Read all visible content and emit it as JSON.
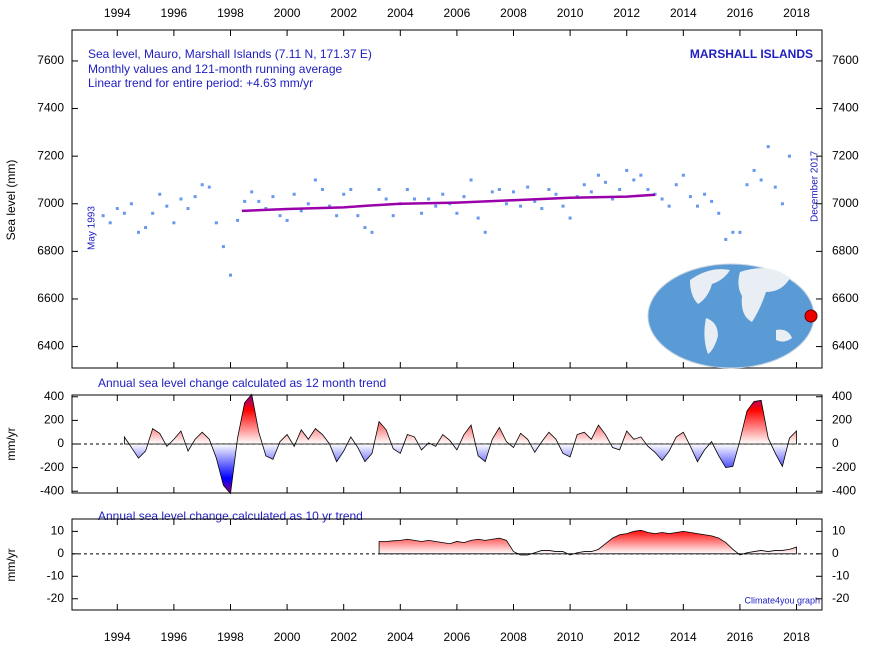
{
  "chart_data": [
    {
      "type": "scatter",
      "title_lines": [
        "Sea level, Mauro, Marshall Islands (7.11 N, 171.37 E)",
        "Monthly values and 121-month running average",
        "Linear trend for entire period: +4.63 mm/yr"
      ],
      "region_label": "MARSHALL ISLANDS",
      "start_label": "May 1993",
      "end_label": "December 2017",
      "y_label": "Sea level (mm)",
      "xlim": [
        1992.4,
        2018.9
      ],
      "xticks": [
        1994,
        1996,
        1998,
        2000,
        2002,
        2004,
        2006,
        2008,
        2010,
        2012,
        2014,
        2016,
        2018
      ],
      "ylim": [
        6310,
        7730
      ],
      "yticks": [
        6400,
        6600,
        6800,
        7000,
        7200,
        7400,
        7600
      ],
      "series": [
        {
          "type": "scatter",
          "color": "#6699ee",
          "x": [
            1993.5,
            1993.75,
            1994,
            1994.25,
            1994.5,
            1994.75,
            1995,
            1995.25,
            1995.5,
            1995.75,
            1996,
            1996.25,
            1996.5,
            1996.75,
            1997,
            1997.25,
            1997.5,
            1997.75,
            1998,
            1998.25,
            1998.5,
            1998.75,
            1999,
            1999.25,
            1999.5,
            1999.75,
            2000,
            2000.25,
            2000.5,
            2000.75,
            2001,
            2001.25,
            2001.5,
            2001.75,
            2002,
            2002.25,
            2002.5,
            2002.75,
            2003,
            2003.25,
            2003.5,
            2003.75,
            2004,
            2004.25,
            2004.5,
            2004.75,
            2005,
            2005.25,
            2005.5,
            2005.75,
            2006,
            2006.25,
            2006.5,
            2006.75,
            2007,
            2007.25,
            2007.5,
            2007.75,
            2008,
            2008.25,
            2008.5,
            2008.75,
            2009,
            2009.25,
            2009.5,
            2009.75,
            2010,
            2010.25,
            2010.5,
            2010.75,
            2011,
            2011.25,
            2011.5,
            2011.75,
            2012,
            2012.25,
            2012.5,
            2012.75,
            2013,
            2013.25,
            2013.5,
            2013.75,
            2014,
            2014.25,
            2014.5,
            2014.75,
            2015,
            2015.25,
            2015.5,
            2015.75,
            2016,
            2016.25,
            2016.5,
            2016.75,
            2017,
            2017.25,
            2017.5,
            2017.75
          ],
          "values": [
            6950,
            6920,
            6980,
            6960,
            7000,
            6880,
            6900,
            6960,
            7040,
            6990,
            6920,
            7020,
            6980,
            7030,
            7080,
            7070,
            6920,
            6820,
            6700,
            6930,
            7010,
            7050,
            7010,
            6980,
            7030,
            6950,
            6930,
            7040,
            6970,
            7000,
            7100,
            7060,
            6990,
            6950,
            7040,
            7060,
            6950,
            6900,
            6880,
            7060,
            7020,
            6950,
            7000,
            7060,
            7020,
            6960,
            7020,
            6990,
            7040,
            7000,
            6960,
            7030,
            7100,
            6940,
            6880,
            7050,
            7060,
            7000,
            7050,
            6990,
            7070,
            7010,
            6980,
            7060,
            7040,
            6990,
            6940,
            7030,
            7080,
            7050,
            7120,
            7090,
            7020,
            7060,
            7140,
            7100,
            7120,
            7060,
            7040,
            7020,
            6990,
            7080,
            7120,
            7030,
            6990,
            7040,
            7010,
            6960,
            6850,
            6880,
            6880,
            7080,
            7140,
            7100,
            7240,
            7070,
            7000,
            7200
          ]
        },
        {
          "type": "line",
          "color": "#9900aa",
          "x": [
            1998.4,
            2000,
            2002,
            2003,
            2004,
            2006,
            2008,
            2010,
            2012,
            2013
          ],
          "values": [
            6970,
            6978,
            6985,
            6993,
            7000,
            7005,
            7015,
            7025,
            7030,
            7038
          ]
        }
      ]
    },
    {
      "type": "area",
      "title": "Annual sea level change calculated as 12 month trend",
      "y_label": "mm/yr",
      "xlim": [
        1992.4,
        2018.9
      ],
      "xticks": [
        1994,
        1996,
        1998,
        2000,
        2002,
        2004,
        2006,
        2008,
        2010,
        2012,
        2014,
        2016,
        2018
      ],
      "ylim": [
        -415,
        415
      ],
      "yticks": [
        -400,
        -200,
        0,
        200,
        400
      ],
      "positive_color": "#ff0000",
      "negative_color": "#0000ff",
      "peak_color": "#880088",
      "x": [
        1994.25,
        1994.5,
        1994.75,
        1995,
        1995.25,
        1995.5,
        1995.75,
        1996,
        1996.25,
        1996.5,
        1996.75,
        1997,
        1997.25,
        1997.5,
        1997.75,
        1998,
        1998.25,
        1998.5,
        1998.75,
        1999,
        1999.25,
        1999.5,
        1999.75,
        2000,
        2000.25,
        2000.5,
        2000.75,
        2001,
        2001.25,
        2001.5,
        2001.75,
        2002,
        2002.25,
        2002.5,
        2002.75,
        2003,
        2003.25,
        2003.5,
        2003.75,
        2004,
        2004.25,
        2004.5,
        2004.75,
        2005,
        2005.25,
        2005.5,
        2005.75,
        2006,
        2006.25,
        2006.5,
        2006.75,
        2007,
        2007.25,
        2007.5,
        2007.75,
        2008,
        2008.25,
        2008.5,
        2008.75,
        2009,
        2009.25,
        2009.5,
        2009.75,
        2010,
        2010.25,
        2010.5,
        2010.75,
        2011,
        2011.25,
        2011.5,
        2011.75,
        2012,
        2012.25,
        2012.5,
        2012.75,
        2013,
        2013.25,
        2013.5,
        2013.75,
        2014,
        2014.25,
        2014.5,
        2014.75,
        2015,
        2015.25,
        2015.5,
        2015.75,
        2016,
        2016.25,
        2016.5,
        2016.75,
        2017,
        2017.25,
        2017.5,
        2017.75,
        2018
      ],
      "values": [
        60,
        -30,
        -120,
        -60,
        130,
        90,
        -20,
        40,
        110,
        -60,
        40,
        100,
        40,
        -120,
        -350,
        -420,
        50,
        350,
        420,
        100,
        -100,
        -130,
        20,
        80,
        -20,
        120,
        40,
        130,
        80,
        0,
        -150,
        -60,
        60,
        -30,
        -150,
        -80,
        190,
        120,
        -40,
        -80,
        80,
        60,
        -50,
        10,
        -20,
        80,
        30,
        -50,
        80,
        160,
        -100,
        -150,
        40,
        140,
        20,
        -30,
        90,
        40,
        -70,
        20,
        100,
        40,
        -80,
        -110,
        80,
        100,
        40,
        160,
        80,
        -30,
        -50,
        110,
        40,
        60,
        -20,
        -70,
        -140,
        -60,
        60,
        100,
        -20,
        -150,
        -50,
        20,
        -100,
        -200,
        -190,
        30,
        280,
        360,
        370,
        50,
        -80,
        -190,
        50,
        110
      ]
    },
    {
      "type": "area",
      "title": "Annual sea level change calculated as 10 yr trend",
      "y_label": "mm/yr",
      "credit": "Climate4you graph",
      "xlim": [
        1992.4,
        2018.9
      ],
      "xticks": [
        1994,
        1996,
        1998,
        2000,
        2002,
        2004,
        2006,
        2008,
        2010,
        2012,
        2014,
        2016,
        2018
      ],
      "ylim": [
        -25,
        15.5
      ],
      "yticks": [
        -20,
        -10,
        0,
        10
      ],
      "positive_color": "#ff0000",
      "negative_color": "#0000ff",
      "peak_color": "#880088",
      "x": [
        2003.25,
        2003.5,
        2003.75,
        2004,
        2004.25,
        2004.5,
        2004.75,
        2005,
        2005.25,
        2005.5,
        2005.75,
        2006,
        2006.25,
        2006.5,
        2006.75,
        2007,
        2007.25,
        2007.5,
        2007.75,
        2008,
        2008.25,
        2008.5,
        2008.75,
        2009,
        2009.25,
        2009.5,
        2009.75,
        2010,
        2010.25,
        2010.5,
        2010.75,
        2011,
        2011.25,
        2011.5,
        2011.75,
        2012,
        2012.25,
        2012.5,
        2012.75,
        2013,
        2013.25,
        2013.5,
        2013.75,
        2014,
        2014.25,
        2014.5,
        2014.75,
        2015,
        2015.25,
        2015.5,
        2015.75,
        2016,
        2016.25,
        2016.5,
        2016.75,
        2017,
        2017.25,
        2017.5,
        2017.75,
        2018
      ],
      "values": [
        5.5,
        5.5,
        5.8,
        6,
        6.5,
        6,
        5.5,
        6,
        5.5,
        5,
        4.5,
        5.5,
        5,
        6,
        6.5,
        6,
        6.5,
        7,
        6,
        1,
        -0.5,
        -0.5,
        0.5,
        1.5,
        1.5,
        1,
        1,
        -0.5,
        0.5,
        1,
        1,
        2,
        4.5,
        7,
        8.5,
        9,
        10,
        10.5,
        9.5,
        9,
        9.5,
        9,
        9.5,
        10,
        9.5,
        9,
        8.5,
        8,
        7,
        5,
        2,
        -0.5,
        0.5,
        1,
        1.5,
        1,
        1.5,
        1.5,
        2,
        3
      ]
    }
  ]
}
